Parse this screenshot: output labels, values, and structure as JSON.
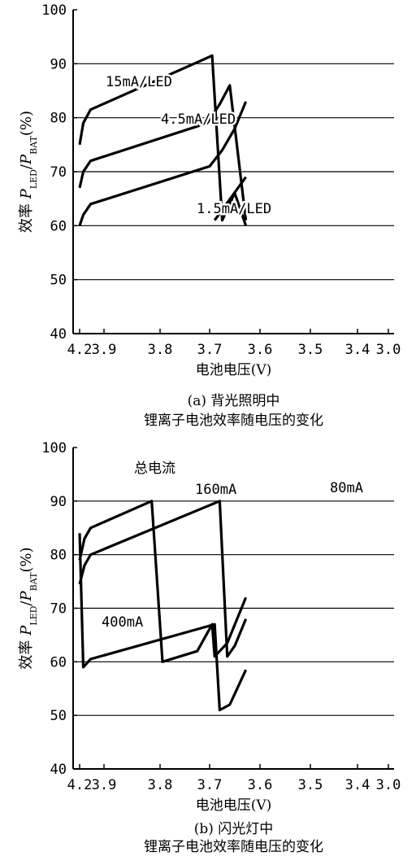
{
  "chart_data": [
    {
      "type": "line",
      "ylim": [
        40,
        100
      ],
      "yticks": [
        "40",
        "50",
        "60",
        "70",
        "80",
        "90",
        "100"
      ],
      "x_tick_labels": [
        "4.2",
        "3.9",
        "3.8",
        "3.7",
        "3.6",
        "3.5",
        "3.4",
        "3.0"
      ],
      "ylabel": {
        "prefix": "效率",
        "p1": "P",
        "sub1": "LED",
        "slash": "/",
        "p2": "P",
        "sub2": "BAT",
        "unit": "(%)"
      },
      "xlabel": "电池电压(V)",
      "caption_line1": "(a) 背光照明中",
      "caption_line2": "锂离子电池效率随电压的变化",
      "grid": true,
      "annotations": [
        "15mA/LED",
        "4.5mA/LED",
        "1.5mA/LED"
      ],
      "series": [
        {
          "name": "15mA/LED",
          "points": [
            [
              0,
              75
            ],
            [
              0.15,
              79
            ],
            [
              0.45,
              81.5
            ],
            [
              3.05,
              91.5
            ],
            [
              3.25,
              61
            ],
            [
              3.5,
              66
            ],
            [
              3.72,
              60
            ]
          ]
        },
        {
          "name": "4.5mA/LED",
          "points": [
            [
              0,
              67
            ],
            [
              0.15,
              70
            ],
            [
              0.45,
              72
            ],
            [
              2.95,
              79
            ],
            [
              3.2,
              82.5
            ],
            [
              3.4,
              86
            ],
            [
              3.72,
              61
            ]
          ]
        },
        {
          "name": "1.5mA/LED",
          "points": [
            [
              0,
              60
            ],
            [
              0.15,
              62
            ],
            [
              0.45,
              64
            ],
            [
              3.0,
              71
            ],
            [
              3.25,
              74
            ],
            [
              3.5,
              78
            ],
            [
              3.72,
              83
            ]
          ]
        }
      ],
      "extra_series": [
        {
          "points": [
            [
              3.1,
              61
            ],
            [
              3.72,
              69
            ]
          ]
        }
      ]
    },
    {
      "type": "line",
      "ylim": [
        40,
        100
      ],
      "yticks": [
        "40",
        "50",
        "60",
        "70",
        "80",
        "90",
        "100"
      ],
      "x_tick_labels": [
        "4.2",
        "3.9",
        "3.8",
        "3.7",
        "3.6",
        "3.5",
        "3.4",
        "3.0"
      ],
      "ylabel": {
        "prefix": "效率",
        "p1": "P",
        "sub1": "LED",
        "slash": "/",
        "p2": "P",
        "sub2": "BAT",
        "unit": "(%)"
      },
      "xlabel": "电池电压(V)",
      "caption_line1": "(b) 闪光灯中",
      "caption_line2": "锂离子电池效率随电压的变化",
      "grid": true,
      "annotations": [
        "总电流",
        "160mA",
        "80mA",
        "400mA"
      ],
      "series": [
        {
          "name": "160mA",
          "points": [
            [
              0,
              79
            ],
            [
              0.2,
              83
            ],
            [
              0.45,
              85
            ],
            [
              1.85,
              90
            ],
            [
              2.05,
              60
            ],
            [
              2.75,
              62
            ],
            [
              3.05,
              67
            ],
            [
              3.1,
              61
            ],
            [
              3.35,
              63.5
            ],
            [
              3.72,
              72
            ]
          ]
        },
        {
          "name": "80mA",
          "points": [
            [
              0,
              74.5
            ],
            [
              0.2,
              78
            ],
            [
              0.45,
              80
            ],
            [
              3.2,
              90
            ],
            [
              3.35,
              61
            ],
            [
              3.5,
              63
            ],
            [
              3.72,
              68
            ]
          ]
        },
        {
          "name": "400mA",
          "points": [
            [
              0,
              84
            ],
            [
              0.15,
              59
            ],
            [
              0.45,
              60.5
            ],
            [
              3.1,
              67
            ],
            [
              3.2,
              51
            ],
            [
              3.4,
              52
            ],
            [
              3.72,
              58.5
            ]
          ]
        }
      ]
    }
  ]
}
